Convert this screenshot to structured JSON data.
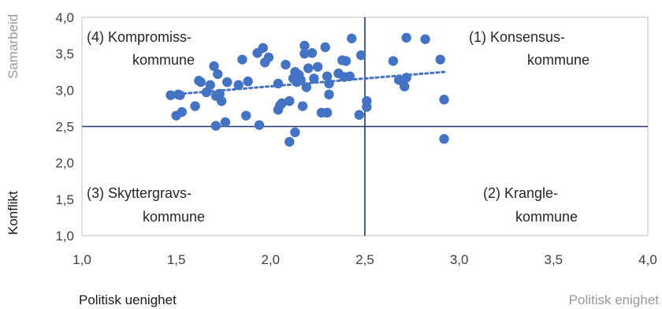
{
  "chart_data": {
    "type": "scatter",
    "xlim": [
      1.0,
      4.0
    ],
    "ylim": [
      1.0,
      4.0
    ],
    "x_ticks": [
      "1,0",
      "1,5",
      "2,0",
      "2,5",
      "3,0",
      "3,5",
      "4,0"
    ],
    "y_ticks": [
      "1,0",
      "1,5",
      "2,0",
      "2,5",
      "3,0",
      "3,5",
      "4,0"
    ],
    "x_label_left": "Politisk uenighet",
    "x_label_right": "Politisk enighet",
    "y_label_top": "Samarbeid",
    "y_label_bottom": "Konflikt",
    "reference_lines": {
      "x": 2.5,
      "y": 2.5
    },
    "quadrant_labels": {
      "q1": [
        "(1) Konsensus-",
        "kommune"
      ],
      "q2": [
        "(2) Krangle-",
        "kommune"
      ],
      "q3": [
        "(3) Skyttergravs-",
        "kommune"
      ],
      "q4": [
        "(4) Kompromiss-",
        "kommune"
      ]
    },
    "trendline": {
      "x": [
        1.48,
        2.92
      ],
      "y": [
        2.94,
        3.25
      ]
    },
    "colors": {
      "points": "#4472c4",
      "trendline": "#4472c4",
      "reference_lines": "#1f3864"
    },
    "points": [
      [
        1.47,
        2.93
      ],
      [
        1.51,
        2.94
      ],
      [
        1.52,
        2.93
      ],
      [
        1.5,
        2.65
      ],
      [
        1.53,
        2.7
      ],
      [
        1.6,
        2.78
      ],
      [
        1.62,
        3.13
      ],
      [
        1.63,
        3.11
      ],
      [
        1.66,
        2.97
      ],
      [
        1.68,
        3.07
      ],
      [
        1.7,
        3.33
      ],
      [
        1.72,
        3.22
      ],
      [
        1.71,
        2.92
      ],
      [
        1.73,
        2.95
      ],
      [
        1.74,
        2.85
      ],
      [
        1.71,
        2.51
      ],
      [
        1.76,
        2.56
      ],
      [
        1.77,
        3.11
      ],
      [
        1.83,
        3.07
      ],
      [
        1.85,
        3.42
      ],
      [
        1.88,
        3.12
      ],
      [
        1.87,
        2.65
      ],
      [
        1.93,
        3.51
      ],
      [
        1.96,
        3.58
      ],
      [
        1.97,
        3.38
      ],
      [
        1.99,
        3.45
      ],
      [
        1.94,
        2.52
      ],
      [
        2.04,
        3.09
      ],
      [
        2.05,
        2.79
      ],
      [
        2.04,
        2.73
      ],
      [
        2.06,
        2.82
      ],
      [
        2.08,
        3.35
      ],
      [
        2.1,
        2.85
      ],
      [
        2.12,
        3.16
      ],
      [
        2.13,
        3.25
      ],
      [
        2.14,
        3.11
      ],
      [
        2.15,
        3.21
      ],
      [
        2.16,
        3.14
      ],
      [
        2.17,
        2.78
      ],
      [
        2.18,
        3.5
      ],
      [
        2.18,
        3.61
      ],
      [
        2.19,
        3.04
      ],
      [
        2.2,
        3.3
      ],
      [
        2.22,
        3.51
      ],
      [
        2.23,
        3.16
      ],
      [
        2.25,
        3.32
      ],
      [
        2.27,
        2.69
      ],
      [
        2.29,
        3.59
      ],
      [
        2.3,
        3.19
      ],
      [
        2.31,
        3.09
      ],
      [
        2.31,
        2.94
      ],
      [
        2.3,
        2.69
      ],
      [
        2.1,
        2.29
      ],
      [
        2.13,
        2.42
      ],
      [
        2.36,
        3.23
      ],
      [
        2.38,
        3.41
      ],
      [
        2.39,
        3.18
      ],
      [
        2.4,
        3.4
      ],
      [
        2.42,
        3.19
      ],
      [
        2.43,
        3.71
      ],
      [
        2.48,
        3.48
      ],
      [
        2.47,
        2.66
      ],
      [
        2.51,
        2.77
      ],
      [
        2.51,
        2.85
      ],
      [
        2.65,
        3.4
      ],
      [
        2.68,
        3.14
      ],
      [
        2.7,
        3.12
      ],
      [
        2.71,
        3.05
      ],
      [
        2.72,
        3.17
      ],
      [
        2.72,
        3.72
      ],
      [
        2.82,
        3.7
      ],
      [
        2.9,
        3.42
      ],
      [
        2.92,
        2.87
      ],
      [
        2.92,
        2.33
      ]
    ]
  }
}
